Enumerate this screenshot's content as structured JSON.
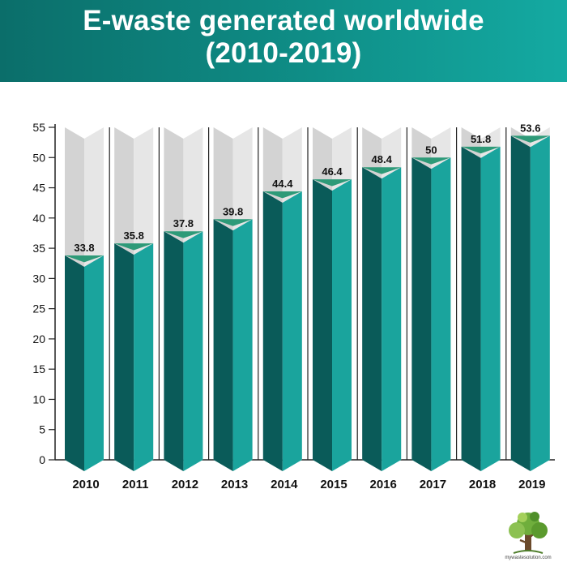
{
  "header": {
    "title_line1": "E-waste generated worldwide",
    "title_line2": "(2010-2019)"
  },
  "chart_data": {
    "type": "bar",
    "categories": [
      "2010",
      "2011",
      "2012",
      "2013",
      "2014",
      "2015",
      "2016",
      "2017",
      "2018",
      "2019"
    ],
    "values": [
      33.8,
      35.8,
      37.8,
      39.8,
      44.4,
      46.4,
      48.4,
      50,
      51.8,
      53.6
    ],
    "data_labels": [
      "33.8",
      "35.8",
      "37.8",
      "39.8",
      "44.4",
      "46.4",
      "48.4",
      "50",
      "51.8",
      "53.6"
    ],
    "yticks": [
      "0",
      "5",
      "10",
      "15",
      "20",
      "25",
      "30",
      "35",
      "40",
      "45",
      "50",
      "55"
    ],
    "ylim": [
      0,
      55
    ],
    "grid": false,
    "colors": {
      "bar_dark": "#0a5b59",
      "bar_light": "#1aa49d",
      "bar_cap": "#2e9a78",
      "track_light": "#e6e6e6",
      "track_dark": "#d3d3d3"
    }
  },
  "footer": {
    "logo_text": "mywastesolution.com"
  }
}
